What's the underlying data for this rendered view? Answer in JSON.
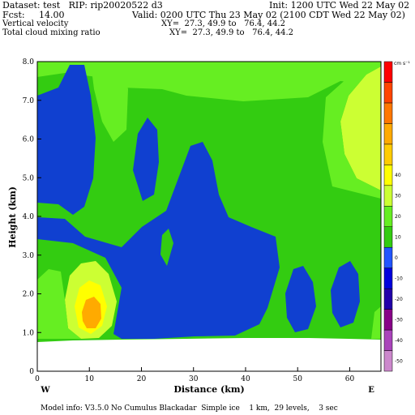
{
  "header": {
    "dataset": "Dataset: test   RIP: rip20020522 d3",
    "init": "Init: 1200 UTC Wed 22 May 02",
    "fcst": "Fcst:     14.00",
    "valid": "Valid: 0200 UTC Thu 23 May 02 (2100 CDT Wed 22 May 02)",
    "field1": "Vertical velocity",
    "xy1": "XY=  27.3, 49.9 to   76.4, 44.2",
    "field2": "Total cloud mixing ratio",
    "xy2": "XY=  27.3, 49.9 to   76.4, 44.2"
  },
  "footer": {
    "model_info": "Model info: V3.5.0 No Cumulus Blackadar  Simple ice    1 km,  29 levels,    3 sec"
  },
  "colors": {
    "ground": "#ffffff",
    "green": "#33cc11",
    "dark_green": "#00a000",
    "blue": "#1040d0",
    "light_green": "#66ee22",
    "yellow_green": "#ccff33",
    "yellow": "#ffff00",
    "orange": "#ffaa00"
  },
  "chart_data": {
    "type": "heatmap",
    "subtype": "cross-section filled contours",
    "xlabel": "Distance (km)",
    "ylabel": "Height (km)",
    "xlim": [
      0,
      66
    ],
    "ylim": [
      0,
      8
    ],
    "x_ticks": [
      0,
      10,
      20,
      30,
      40,
      50,
      60
    ],
    "y_ticks": [
      "0",
      "1.0",
      "2.0",
      "3.0",
      "4.0",
      "5.0",
      "6.0",
      "7.0",
      "8.0"
    ],
    "left_end_label": "W",
    "right_end_label": "E",
    "colorbar_units": "cm s⁻¹",
    "colorbar": [
      {
        "value": "-50",
        "color": "#cc88cc"
      },
      {
        "value": "-40",
        "color": "#aa44bb"
      },
      {
        "value": "-30",
        "color": "#880088"
      },
      {
        "value": "-20",
        "color": "#2200aa"
      },
      {
        "value": "-10",
        "color": "#0000dd"
      },
      {
        "value": "0",
        "color": "#2255ff"
      },
      {
        "value": "10",
        "color": "#33cc11"
      },
      {
        "value": "20",
        "color": "#66ee22"
      },
      {
        "value": "30",
        "color": "#ccff33"
      },
      {
        "value": "40",
        "color": "#ffff00"
      },
      {
        "value": "50",
        "color": "#ffcc00"
      },
      {
        "value": "60",
        "color": "#ffaa00"
      },
      {
        "value": "70",
        "color": "#ff7700"
      },
      {
        "value": "80",
        "color": "#ff4400"
      },
      {
        "value": "90",
        "color": "#ff0000"
      }
    ],
    "colorbar_labels": [
      "-50",
      "-40",
      "-30",
      "-20",
      "-10",
      "0",
      "10",
      "20",
      "30",
      "40"
    ],
    "terrain_height_km": 0.85
  }
}
